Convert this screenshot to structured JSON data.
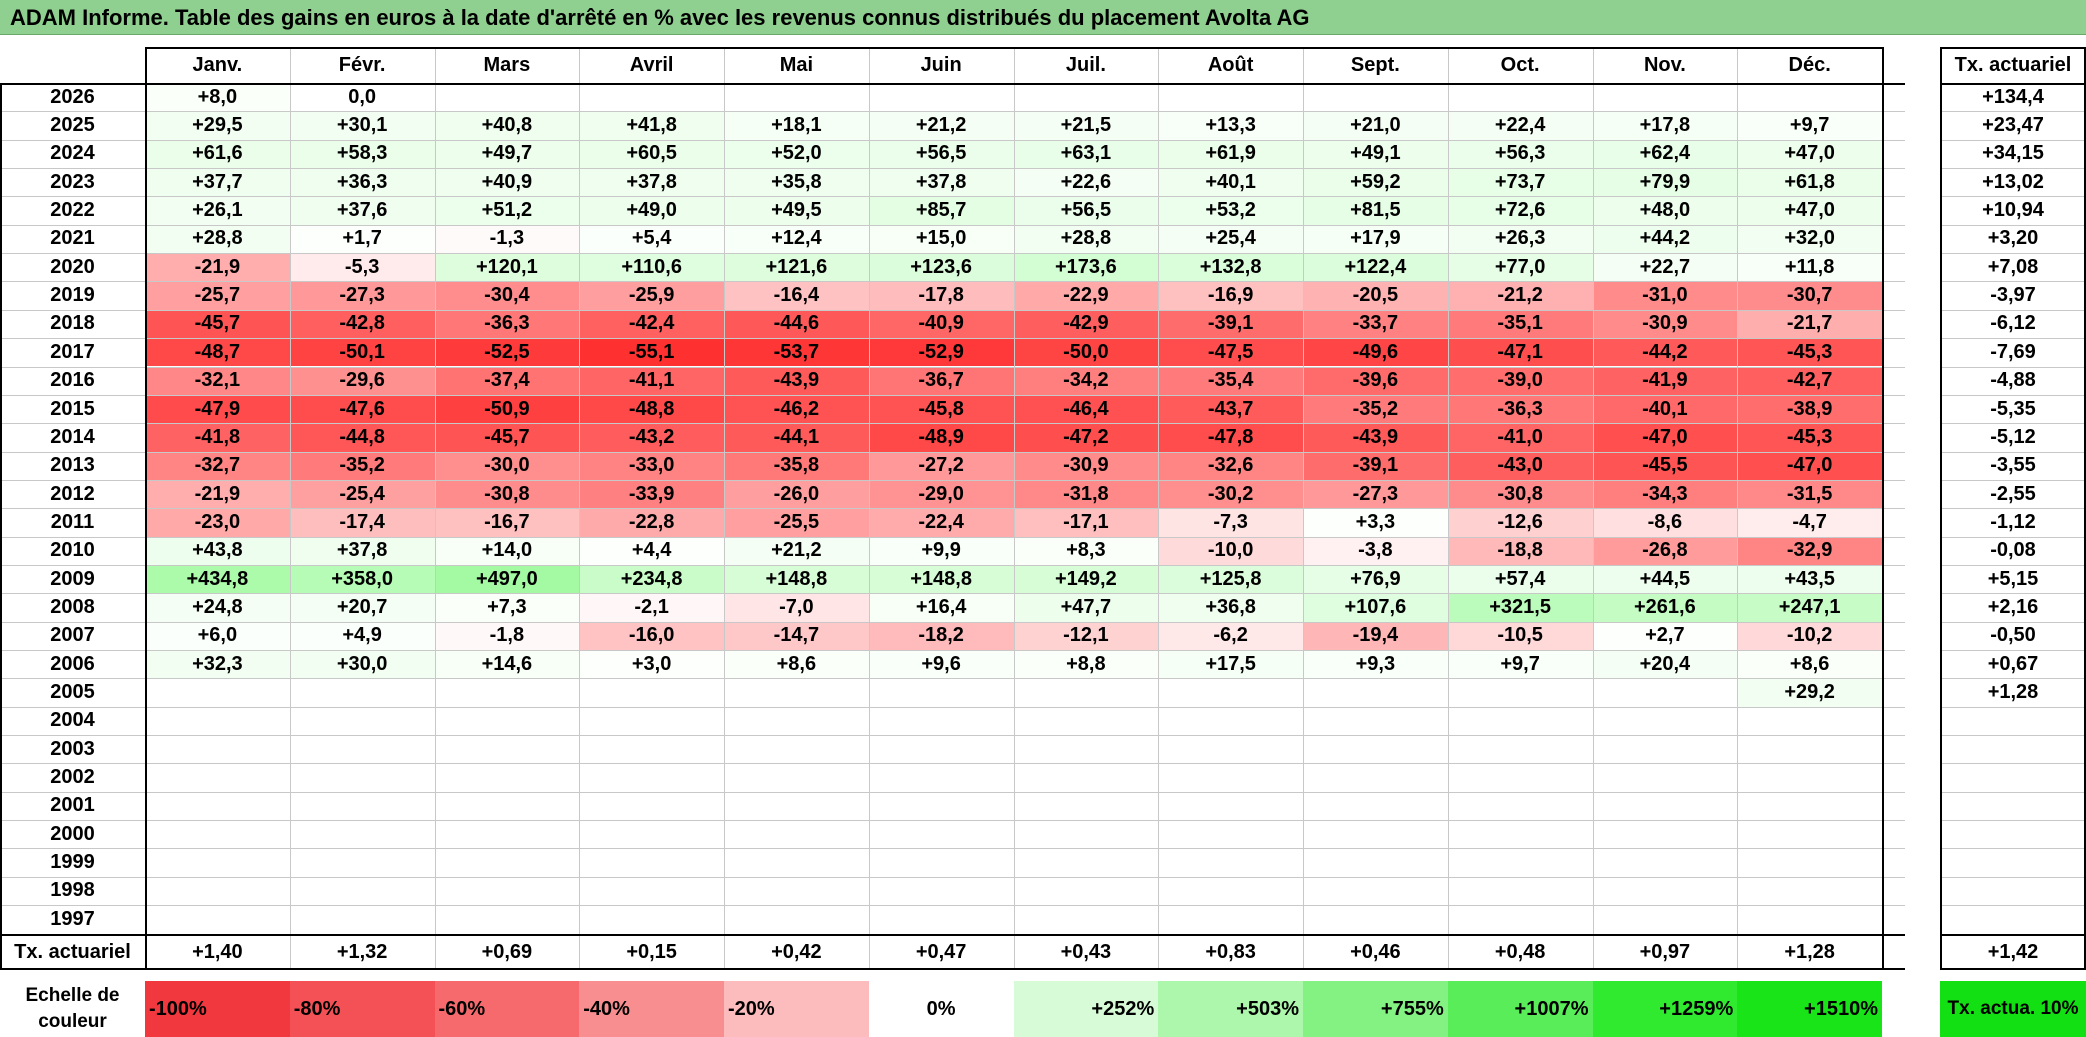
{
  "title": "ADAM Informe. Table des gains en euros à la date d'arrêté en % avec les revenus connus distribués du placement Avolta AG",
  "colors": {
    "title_bg": "#8fcf8f"
  },
  "chart_data": {
    "type": "heatmap",
    "title": "ADAM Informe. Table des gains en euros à la date d'arrêté en % avec les revenus connus distribués du placement Avolta AG",
    "columns": [
      "Janv.",
      "Févr.",
      "Mars",
      "Avril",
      "Mai",
      "Juin",
      "Juil.",
      "Août",
      "Sept.",
      "Oct.",
      "Nov.",
      "Déc."
    ],
    "annual_header": "Tx. actuariel",
    "rows": [
      {
        "year": "2026",
        "values": [
          "+8,0",
          "0,0",
          "",
          "",
          "",
          "",
          "",
          "",
          "",
          "",
          "",
          ""
        ],
        "annual": "+134,4"
      },
      {
        "year": "2025",
        "values": [
          "+29,5",
          "+30,1",
          "+40,8",
          "+41,8",
          "+18,1",
          "+21,2",
          "+21,5",
          "+13,3",
          "+21,0",
          "+22,4",
          "+17,8",
          "+9,7"
        ],
        "annual": "+23,47"
      },
      {
        "year": "2024",
        "values": [
          "+61,6",
          "+58,3",
          "+49,7",
          "+60,5",
          "+52,0",
          "+56,5",
          "+63,1",
          "+61,9",
          "+49,1",
          "+56,3",
          "+62,4",
          "+47,0"
        ],
        "annual": "+34,15"
      },
      {
        "year": "2023",
        "values": [
          "+37,7",
          "+36,3",
          "+40,9",
          "+37,8",
          "+35,8",
          "+37,8",
          "+22,6",
          "+40,1",
          "+59,2",
          "+73,7",
          "+79,9",
          "+61,8"
        ],
        "annual": "+13,02"
      },
      {
        "year": "2022",
        "values": [
          "+26,1",
          "+37,6",
          "+51,2",
          "+49,0",
          "+49,5",
          "+85,7",
          "+56,5",
          "+53,2",
          "+81,5",
          "+72,6",
          "+48,0",
          "+47,0"
        ],
        "annual": "+10,94"
      },
      {
        "year": "2021",
        "values": [
          "+28,8",
          "+1,7",
          "-1,3",
          "+5,4",
          "+12,4",
          "+15,0",
          "+28,8",
          "+25,4",
          "+17,9",
          "+26,3",
          "+44,2",
          "+32,0"
        ],
        "annual": "+3,20"
      },
      {
        "year": "2020",
        "values": [
          "-21,9",
          "-5,3",
          "+120,1",
          "+110,6",
          "+121,6",
          "+123,6",
          "+173,6",
          "+132,8",
          "+122,4",
          "+77,0",
          "+22,7",
          "+11,8"
        ],
        "annual": "+7,08"
      },
      {
        "year": "2019",
        "values": [
          "-25,7",
          "-27,3",
          "-30,4",
          "-25,9",
          "-16,4",
          "-17,8",
          "-22,9",
          "-16,9",
          "-20,5",
          "-21,2",
          "-31,0",
          "-30,7"
        ],
        "annual": "-3,97"
      },
      {
        "year": "2018",
        "values": [
          "-45,7",
          "-42,8",
          "-36,3",
          "-42,4",
          "-44,6",
          "-40,9",
          "-42,9",
          "-39,1",
          "-33,7",
          "-35,1",
          "-30,9",
          "-21,7"
        ],
        "annual": "-6,12"
      },
      {
        "year": "2017",
        "values": [
          "-48,7",
          "-50,1",
          "-52,5",
          "-55,1",
          "-53,7",
          "-52,9",
          "-50,0",
          "-47,5",
          "-49,6",
          "-47,1",
          "-44,2",
          "-45,3"
        ],
        "annual": "-7,69"
      },
      {
        "year": "2016",
        "values": [
          "-32,1",
          "-29,6",
          "-37,4",
          "-41,1",
          "-43,9",
          "-36,7",
          "-34,2",
          "-35,4",
          "-39,6",
          "-39,0",
          "-41,9",
          "-42,7"
        ],
        "annual": "-4,88"
      },
      {
        "year": "2015",
        "values": [
          "-47,9",
          "-47,6",
          "-50,9",
          "-48,8",
          "-46,2",
          "-45,8",
          "-46,4",
          "-43,7",
          "-35,2",
          "-36,3",
          "-40,1",
          "-38,9"
        ],
        "annual": "-5,35"
      },
      {
        "year": "2014",
        "values": [
          "-41,8",
          "-44,8",
          "-45,7",
          "-43,2",
          "-44,1",
          "-48,9",
          "-47,2",
          "-47,8",
          "-43,9",
          "-41,0",
          "-47,0",
          "-45,3"
        ],
        "annual": "-5,12"
      },
      {
        "year": "2013",
        "values": [
          "-32,7",
          "-35,2",
          "-30,0",
          "-33,0",
          "-35,8",
          "-27,2",
          "-30,9",
          "-32,6",
          "-39,1",
          "-43,0",
          "-45,5",
          "-47,0"
        ],
        "annual": "-3,55"
      },
      {
        "year": "2012",
        "values": [
          "-21,9",
          "-25,4",
          "-30,8",
          "-33,9",
          "-26,0",
          "-29,0",
          "-31,8",
          "-30,2",
          "-27,3",
          "-30,8",
          "-34,3",
          "-31,5"
        ],
        "annual": "-2,55"
      },
      {
        "year": "2011",
        "values": [
          "-23,0",
          "-17,4",
          "-16,7",
          "-22,8",
          "-25,5",
          "-22,4",
          "-17,1",
          "-7,3",
          "+3,3",
          "-12,6",
          "-8,6",
          "-4,7"
        ],
        "annual": "-1,12"
      },
      {
        "year": "2010",
        "values": [
          "+43,8",
          "+37,8",
          "+14,0",
          "+4,4",
          "+21,2",
          "+9,9",
          "+8,3",
          "-10,0",
          "-3,8",
          "-18,8",
          "-26,8",
          "-32,9"
        ],
        "annual": "-0,08"
      },
      {
        "year": "2009",
        "values": [
          "+434,8",
          "+358,0",
          "+497,0",
          "+234,8",
          "+148,8",
          "+148,8",
          "+149,2",
          "+125,8",
          "+76,9",
          "+57,4",
          "+44,5",
          "+43,5"
        ],
        "annual": "+5,15"
      },
      {
        "year": "2008",
        "values": [
          "+24,8",
          "+20,7",
          "+7,3",
          "-2,1",
          "-7,0",
          "+16,4",
          "+47,7",
          "+36,8",
          "+107,6",
          "+321,5",
          "+261,6",
          "+247,1"
        ],
        "annual": "+2,16"
      },
      {
        "year": "2007",
        "values": [
          "+6,0",
          "+4,9",
          "-1,8",
          "-16,0",
          "-14,7",
          "-18,2",
          "-12,1",
          "-6,2",
          "-19,4",
          "-10,5",
          "+2,7",
          "-10,2"
        ],
        "annual": "-0,50"
      },
      {
        "year": "2006",
        "values": [
          "+32,3",
          "+30,0",
          "+14,6",
          "+3,0",
          "+8,6",
          "+9,6",
          "+8,8",
          "+17,5",
          "+9,3",
          "+9,7",
          "+20,4",
          "+8,6"
        ],
        "annual": "+0,67"
      },
      {
        "year": "2005",
        "values": [
          "",
          "",
          "",
          "",
          "",
          "",
          "",
          "",
          "",
          "",
          "",
          "+29,2"
        ],
        "annual": "+1,28"
      },
      {
        "year": "2004",
        "values": [
          "",
          "",
          "",
          "",
          "",
          "",
          "",
          "",
          "",
          "",
          "",
          ""
        ],
        "annual": ""
      },
      {
        "year": "2003",
        "values": [
          "",
          "",
          "",
          "",
          "",
          "",
          "",
          "",
          "",
          "",
          "",
          ""
        ],
        "annual": ""
      },
      {
        "year": "2002",
        "values": [
          "",
          "",
          "",
          "",
          "",
          "",
          "",
          "",
          "",
          "",
          "",
          ""
        ],
        "annual": ""
      },
      {
        "year": "2001",
        "values": [
          "",
          "",
          "",
          "",
          "",
          "",
          "",
          "",
          "",
          "",
          "",
          ""
        ],
        "annual": ""
      },
      {
        "year": "2000",
        "values": [
          "",
          "",
          "",
          "",
          "",
          "",
          "",
          "",
          "",
          "",
          "",
          ""
        ],
        "annual": ""
      },
      {
        "year": "1999",
        "values": [
          "",
          "",
          "",
          "",
          "",
          "",
          "",
          "",
          "",
          "",
          "",
          ""
        ],
        "annual": ""
      },
      {
        "year": "1998",
        "values": [
          "",
          "",
          "",
          "",
          "",
          "",
          "",
          "",
          "",
          "",
          "",
          ""
        ],
        "annual": ""
      },
      {
        "year": "1997",
        "values": [
          "",
          "",
          "",
          "",
          "",
          "",
          "",
          "",
          "",
          "",
          "",
          ""
        ],
        "annual": ""
      }
    ],
    "footer_label": "Tx. actuariel",
    "footer_values": [
      "+1,40",
      "+1,32",
      "+0,69",
      "+0,15",
      "+0,42",
      "+0,47",
      "+0,43",
      "+0,83",
      "+0,46",
      "+0,48",
      "+0,97",
      "+1,28"
    ],
    "footer_annual": "+1,42",
    "scale_label": "Echelle de couleur",
    "scale": [
      {
        "label": "-100%",
        "color": "#f2383f",
        "align": "left"
      },
      {
        "label": "-80%",
        "color": "#f45156",
        "align": "left"
      },
      {
        "label": "-60%",
        "color": "#f66a6e",
        "align": "left"
      },
      {
        "label": "-40%",
        "color": "#f98e90",
        "align": "left"
      },
      {
        "label": "-20%",
        "color": "#fcbcbd",
        "align": "left"
      },
      {
        "label": "0%",
        "color": "#ffffff",
        "align": "center"
      },
      {
        "label": "+252%",
        "color": "#d6fbd6",
        "align": "right"
      },
      {
        "label": "+503%",
        "color": "#acf7ac",
        "align": "right"
      },
      {
        "label": "+755%",
        "color": "#83f283",
        "align": "right"
      },
      {
        "label": "+1007%",
        "color": "#59ee59",
        "align": "right"
      },
      {
        "label": "+1259%",
        "color": "#30ea30",
        "align": "right"
      },
      {
        "label": "+1510%",
        "color": "#18e418",
        "align": "right"
      }
    ],
    "scale_annual_label": "Tx. actua. 10%",
    "scale_annual_color": "#12e012",
    "color_scale_description": "red shades for negative gains, green shades for positive gains"
  }
}
